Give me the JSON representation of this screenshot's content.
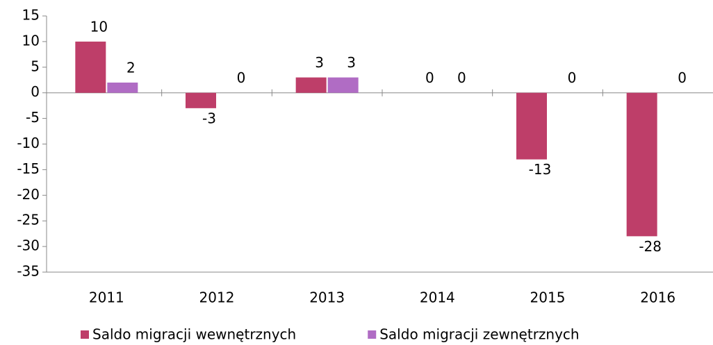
{
  "chart_data": {
    "type": "bar",
    "categories": [
      "2011",
      "2012",
      "2013",
      "2014",
      "2015",
      "2016"
    ],
    "series": [
      {
        "name": "Saldo migracji wewnętrznych",
        "color": "#be3e69",
        "values": [
          10,
          -3,
          3,
          0,
          -13,
          -28
        ]
      },
      {
        "name": "Saldo migracji zewnętrznych",
        "color": "#b06cc4",
        "values": [
          2,
          0,
          3,
          0,
          0,
          0
        ]
      }
    ],
    "ylim": [
      -35,
      15
    ],
    "yticks": [
      -35,
      -30,
      -25,
      -20,
      -15,
      -10,
      -5,
      0,
      5,
      10,
      15
    ],
    "legend": "bottom"
  }
}
